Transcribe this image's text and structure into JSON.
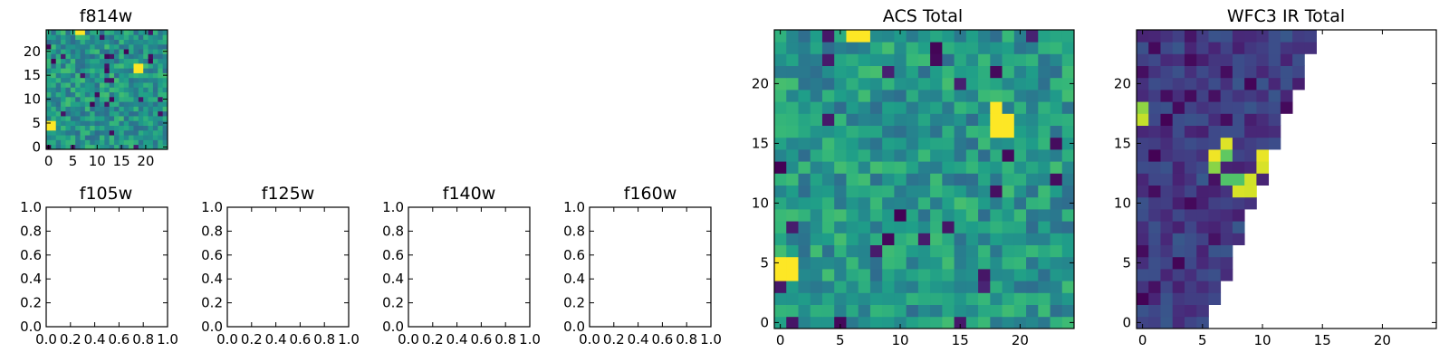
{
  "chart_data": [
    {
      "id": "f814w",
      "type": "heatmap",
      "title": "f814w",
      "grid_size": 25,
      "xlim": [
        -0.5,
        24.5
      ],
      "ylim": [
        -0.5,
        24.5
      ],
      "xticks": [
        0,
        5,
        10,
        15,
        20
      ],
      "xtick_labels": [
        "0",
        "5",
        "10",
        "15",
        "20"
      ],
      "yticks": [
        0,
        5,
        10,
        15,
        20
      ],
      "ytick_labels": [
        "0",
        "5",
        "10",
        "15",
        "20"
      ],
      "colormap": "viridis",
      "notes_hot_pixels": [
        [
          0,
          4
        ],
        [
          0,
          5
        ],
        [
          1,
          4
        ],
        [
          1,
          5
        ],
        [
          18,
          16
        ],
        [
          19,
          16
        ],
        [
          18,
          17
        ],
        [
          19,
          17
        ],
        [
          6,
          24
        ],
        [
          7,
          24
        ]
      ],
      "fill": "random"
    },
    {
      "id": "f105w",
      "type": "empty",
      "title": "f105w",
      "xlim": [
        0,
        1
      ],
      "ylim": [
        0,
        1
      ],
      "xtick_labels": [
        "0.0",
        "0.2",
        "0.4",
        "0.6",
        "0.8",
        "1.0"
      ],
      "ytick_labels": [
        "0.0",
        "0.2",
        "0.4",
        "0.6",
        "0.8",
        "1.0"
      ]
    },
    {
      "id": "f125w",
      "type": "empty",
      "title": "f125w",
      "xlim": [
        0,
        1
      ],
      "ylim": [
        0,
        1
      ],
      "xtick_labels": [
        "0.0",
        "0.2",
        "0.4",
        "0.6",
        "0.8",
        "1.0"
      ],
      "ytick_labels": [
        "0.0",
        "0.2",
        "0.4",
        "0.6",
        "0.8",
        "1.0"
      ]
    },
    {
      "id": "f140w",
      "type": "empty",
      "title": "f140w",
      "xlim": [
        0,
        1
      ],
      "ylim": [
        0,
        1
      ],
      "xtick_labels": [
        "0.0",
        "0.2",
        "0.4",
        "0.6",
        "0.8",
        "1.0"
      ],
      "ytick_labels": [
        "0.0",
        "0.2",
        "0.4",
        "0.6",
        "0.8",
        "1.0"
      ]
    },
    {
      "id": "f160w",
      "type": "empty",
      "title": "f160w",
      "xlim": [
        0,
        1
      ],
      "ylim": [
        0,
        1
      ],
      "xtick_labels": [
        "0.0",
        "0.2",
        "0.4",
        "0.6",
        "0.8",
        "1.0"
      ],
      "ytick_labels": [
        "0.0",
        "0.2",
        "0.4",
        "0.6",
        "0.8",
        "1.0"
      ]
    },
    {
      "id": "acs-total",
      "type": "heatmap",
      "title": "ACS Total",
      "grid_size": 25,
      "xlim": [
        -0.5,
        24.5
      ],
      "ylim": [
        -0.5,
        24.5
      ],
      "xticks": [
        0,
        5,
        10,
        15,
        20
      ],
      "xtick_labels": [
        "0",
        "5",
        "10",
        "15",
        "20"
      ],
      "yticks": [
        0,
        5,
        10,
        15,
        20
      ],
      "ytick_labels": [
        "0",
        "5",
        "10",
        "15",
        "20"
      ],
      "colormap": "viridis",
      "hot_pixels": [
        [
          0,
          4
        ],
        [
          0,
          5
        ],
        [
          1,
          4
        ],
        [
          1,
          5
        ],
        [
          18,
          16
        ],
        [
          19,
          16
        ],
        [
          18,
          17
        ],
        [
          19,
          17
        ],
        [
          18,
          18
        ],
        [
          6,
          24
        ],
        [
          7,
          24
        ]
      ],
      "fill": "random"
    },
    {
      "id": "wfc3-ir-total",
      "type": "heatmap",
      "title": "WFC3 IR Total",
      "grid_size": 25,
      "xlim": [
        -0.5,
        24.5
      ],
      "ylim": [
        -0.5,
        24.5
      ],
      "xticks": [
        0,
        5,
        10,
        15,
        20
      ],
      "xtick_labels": [
        "0",
        "5",
        "10",
        "15",
        "20"
      ],
      "yticks": [
        0,
        5,
        10,
        15,
        20
      ],
      "ytick_labels": [
        "0",
        "5",
        "10",
        "15",
        "20"
      ],
      "colormap": "viridis",
      "triangle_max_col_at_row0": 5,
      "triangle_max_col_at_row24": 14,
      "bright_pixels": [
        [
          0,
          17
        ],
        [
          0,
          18
        ],
        [
          6,
          14
        ],
        [
          7,
          14
        ],
        [
          8,
          12
        ],
        [
          8,
          11
        ],
        [
          9,
          11
        ],
        [
          9,
          12
        ],
        [
          10,
          13
        ],
        [
          10,
          14
        ],
        [
          11,
          14
        ],
        [
          7,
          15
        ],
        [
          6,
          13
        ],
        [
          7,
          12
        ],
        [
          10,
          10
        ]
      ],
      "fill": "random"
    }
  ]
}
